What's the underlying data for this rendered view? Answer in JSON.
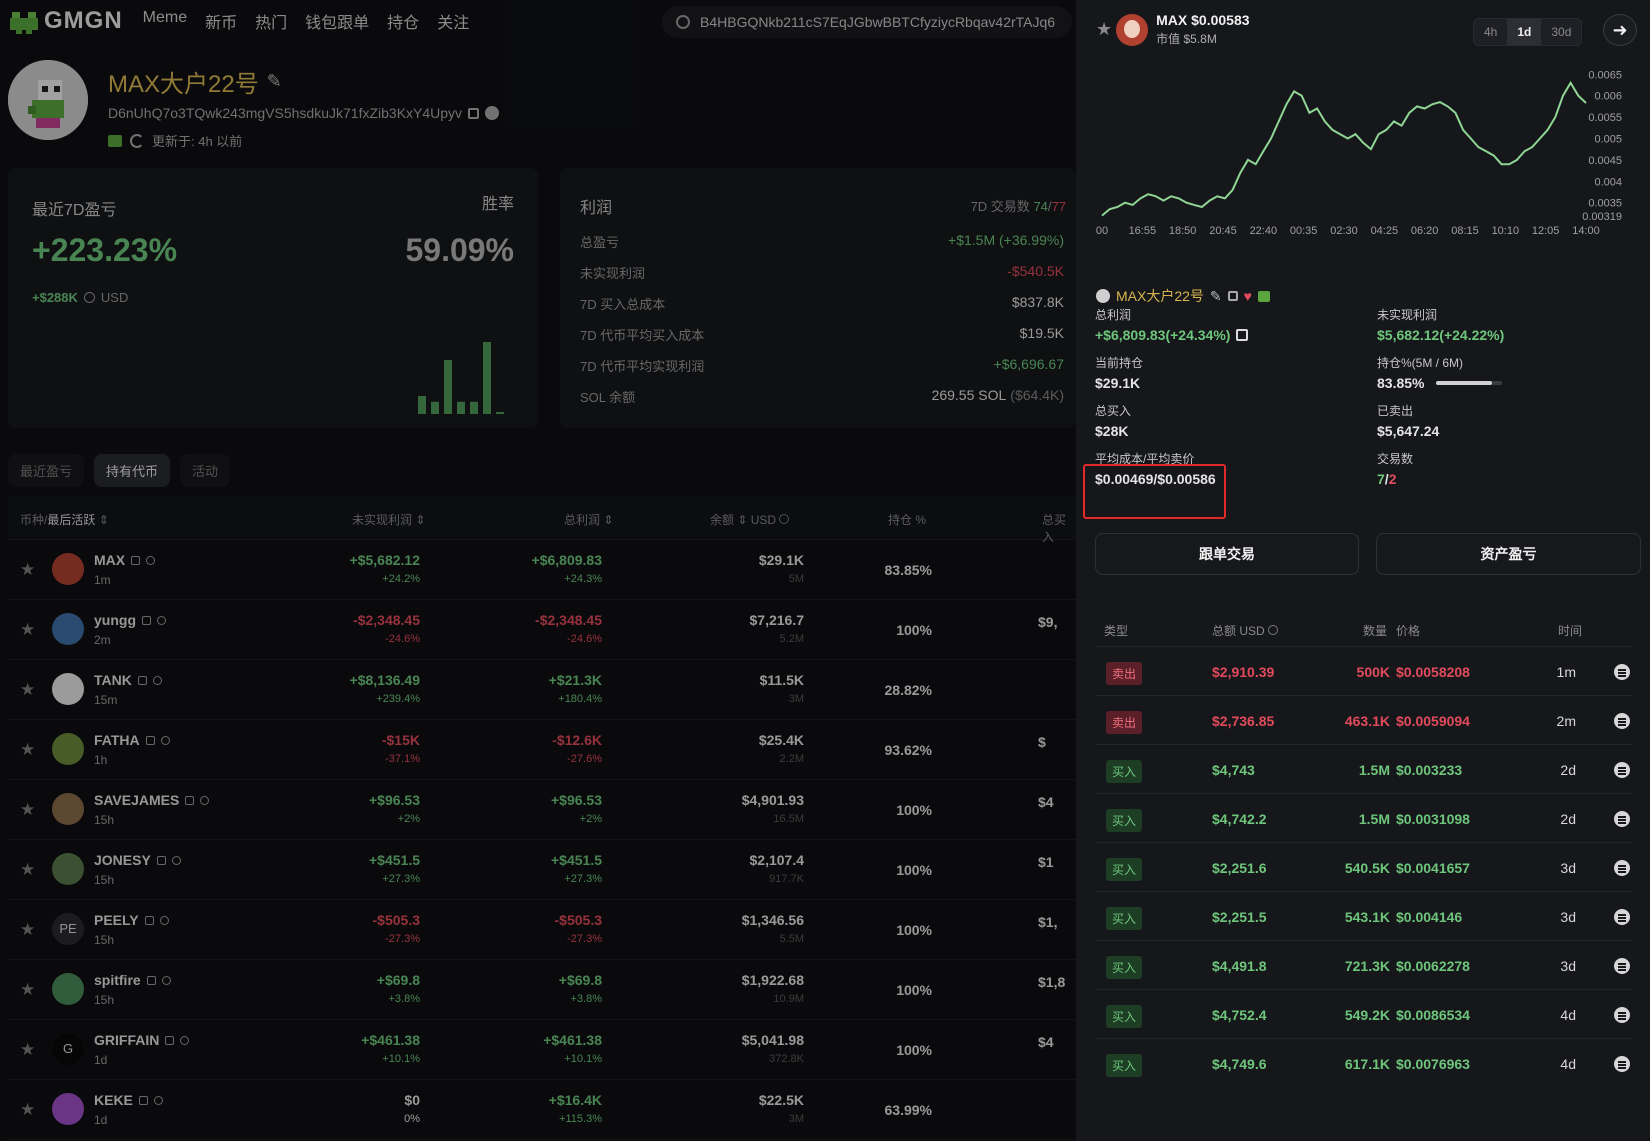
{
  "nav": {
    "logo_text": "GMGN",
    "links": [
      "Meme",
      "新币",
      "热门",
      "钱包跟单",
      "持仓",
      "关注"
    ],
    "search_text": "B4HBGQNkb211cS7EqJGbwBBTCfyziycRbqav42rTAJq6"
  },
  "profile": {
    "name": "MAX大户22号",
    "address": "D6nUhQ7o3TQwk243mgVS5hsdkuJk71fxZib3KxY4Upyv",
    "updated": "更新于: 4h 以前"
  },
  "pnl_card": {
    "title": "最近7D盈亏",
    "winrate_label": "胜率",
    "pnl_pct": "+223.23%",
    "winrate": "59.09%",
    "pnl_usd": "+$288K",
    "currency": "USD",
    "bar_values": [
      0.25,
      0.17,
      0.75,
      0.17,
      0.17,
      1.0,
      0.02
    ]
  },
  "profit_card": {
    "title": "利润",
    "tx_label": "7D 交易数",
    "tx_win": "74",
    "tx_sep": "/",
    "tx_loss": "77",
    "rows": [
      {
        "label": "总盈亏",
        "value": "+$1.5M (+36.99%)",
        "cls": "g"
      },
      {
        "label": "未实现利润",
        "value": "-$540.5K",
        "cls": "r"
      },
      {
        "label": "7D 买入总成本",
        "value": "$837.8K",
        "cls": "w"
      },
      {
        "label": "7D 代币平均买入成本",
        "value": "$19.5K",
        "cls": "w"
      },
      {
        "label": "7D 代币平均实现利润",
        "value": "+$6,696.67",
        "cls": "g"
      },
      {
        "label": "SOL 余额",
        "value": "269.55 SOL",
        "extra": "($64.4K)",
        "cls": "w"
      }
    ]
  },
  "tabs": [
    "最近盈亏",
    "持有代币",
    "活动"
  ],
  "table": {
    "headers": {
      "token": "币种/",
      "sort": "最后活跃",
      "unreal": "未实现利润",
      "total": "总利润",
      "balance": "余额",
      "usd": "USD",
      "hold": "持仓 %",
      "cost": "总买入"
    },
    "rows": [
      {
        "name": "MAX",
        "time": "1m",
        "u": "+$5,682.12",
        "up": "+24.2%",
        "uc": "g",
        "t": "+$6,809.83",
        "tp": "+24.3%",
        "tc": "g",
        "b": "$29.1K",
        "bq": "5M",
        "h": "83.85%",
        "c": "",
        "av": "#b04030"
      },
      {
        "name": "yungg",
        "time": "2m",
        "u": "-$2,348.45",
        "up": "-24.6%",
        "uc": "r",
        "t": "-$2,348.45",
        "tp": "-24.6%",
        "tc": "r",
        "b": "$7,216.7",
        "bq": "5.2M",
        "h": "100%",
        "c": "$9,",
        "av": "#3f6fa8"
      },
      {
        "name": "TANK",
        "time": "15m",
        "u": "+$8,136.49",
        "up": "+239.4%",
        "uc": "g",
        "t": "+$21.3K",
        "tp": "+180.4%",
        "tc": "g",
        "b": "$11.5K",
        "bq": "3M",
        "h": "28.82%",
        "c": "",
        "av": "#e8e8e8"
      },
      {
        "name": "FATHA",
        "time": "1h",
        "u": "-$15K",
        "up": "-37.1%",
        "uc": "r",
        "t": "-$12.6K",
        "tp": "-27.6%",
        "tc": "r",
        "b": "$25.4K",
        "bq": "2.2M",
        "h": "93.62%",
        "c": "$",
        "av": "#6a8a3a"
      },
      {
        "name": "SAVEJAMES",
        "time": "15h",
        "u": "+$96.53",
        "up": "+2%",
        "uc": "g",
        "t": "+$96.53",
        "tp": "+2%",
        "tc": "g",
        "b": "$4,901.93",
        "bq": "16.5M",
        "h": "100%",
        "c": "$4",
        "av": "#8a6a4a"
      },
      {
        "name": "JONESY",
        "time": "15h",
        "u": "+$451.5",
        "up": "+27.3%",
        "uc": "g",
        "t": "+$451.5",
        "tp": "+27.3%",
        "tc": "g",
        "b": "$2,107.4",
        "bq": "917.7K",
        "h": "100%",
        "c": "$1",
        "av": "#5a7a4a"
      },
      {
        "name": "PEELY",
        "time": "15h",
        "u": "-$505.3",
        "up": "-27.3%",
        "uc": "r",
        "t": "-$505.3",
        "tp": "-27.3%",
        "tc": "r",
        "b": "$1,346.56",
        "bq": "5.5M",
        "h": "100%",
        "c": "$1,",
        "av": "#2a2b30",
        "avtext": "PE"
      },
      {
        "name": "spitfire",
        "time": "15h",
        "u": "+$69.8",
        "up": "+3.8%",
        "uc": "g",
        "t": "+$69.8",
        "tp": "+3.8%",
        "tc": "g",
        "b": "$1,922.68",
        "bq": "10.9M",
        "h": "100%",
        "c": "$1,8",
        "av": "#4a8a5a"
      },
      {
        "name": "GRIFFAIN",
        "time": "1d",
        "u": "+$461.38",
        "up": "+10.1%",
        "uc": "g",
        "t": "+$461.38",
        "tp": "+10.1%",
        "tc": "g",
        "b": "$5,041.98",
        "bq": "372.8K",
        "h": "100%",
        "c": "$4",
        "av": "#0a0a0a",
        "avtext": "G"
      },
      {
        "name": "KEKE",
        "time": "1d",
        "u": "$0",
        "up": "0%",
        "uc": "w",
        "t": "+$16.4K",
        "tp": "+115.3%",
        "tc": "g",
        "b": "$22.5K",
        "bq": "3M",
        "h": "63.99%",
        "c": "",
        "av": "#a050c8"
      }
    ]
  },
  "right": {
    "token": "MAX $0.00583",
    "mcap": "市值 $5.8M",
    "timeframes": [
      "4h",
      "1d",
      "30d"
    ],
    "active_tf": "1d",
    "chart_data": {
      "type": "line",
      "x_labels": [
        "00",
        "16:55",
        "18:50",
        "20:45",
        "22:40",
        "00:35",
        "02:30",
        "04:25",
        "06:20",
        "08:15",
        "10:10",
        "12:05",
        "14:00"
      ],
      "y_labels": [
        "0.0065",
        "0.006",
        "0.0055",
        "0.005",
        "0.0045",
        "0.004",
        "0.0035",
        "0.00319"
      ],
      "ylim": [
        0.00319,
        0.0066
      ],
      "color": "#8fd694",
      "values": [
        0.0032,
        0.00335,
        0.0034,
        0.0035,
        0.00345,
        0.0036,
        0.0037,
        0.00365,
        0.00355,
        0.00365,
        0.0036,
        0.0035,
        0.00345,
        0.0034,
        0.00355,
        0.00365,
        0.0036,
        0.0038,
        0.0042,
        0.0045,
        0.0044,
        0.0047,
        0.005,
        0.0054,
        0.0058,
        0.0061,
        0.006,
        0.0056,
        0.0057,
        0.0054,
        0.0052,
        0.0051,
        0.005,
        0.0051,
        0.0049,
        0.00475,
        0.0051,
        0.0052,
        0.0054,
        0.0053,
        0.0056,
        0.00575,
        0.0057,
        0.0058,
        0.00585,
        0.00575,
        0.0056,
        0.0052,
        0.005,
        0.0048,
        0.0047,
        0.0046,
        0.0044,
        0.0044,
        0.0045,
        0.0047,
        0.0048,
        0.005,
        0.0052,
        0.0055,
        0.006,
        0.0063,
        0.006,
        0.00583
      ]
    },
    "holder": {
      "name": "MAX大户22号"
    },
    "stats": [
      {
        "label": "总利润",
        "value": "+$6,809.83(+24.34%)",
        "cls": "g"
      },
      {
        "label": "未实现利润",
        "value": "$5,682.12(+24.22%)",
        "cls": "g"
      },
      {
        "label": "当前持仓",
        "value": "$29.1K",
        "cls": "w"
      },
      {
        "label": "持仓%(5M / 6M)",
        "value": "83.85%",
        "cls": "w",
        "bar": 0.8385
      },
      {
        "label": "总买入",
        "value": "$28K",
        "cls": "w"
      },
      {
        "label": "已卖出",
        "value": "$5,647.24",
        "cls": "w"
      },
      {
        "label": "平均成本/平均卖价",
        "value": "$0.00469/$0.00586",
        "cls": "w"
      },
      {
        "label": "交易数",
        "value_win": "7",
        "value_sep": "/",
        "value_loss": "2"
      }
    ],
    "buttons": [
      "跟单交易",
      "资产盈亏"
    ],
    "trades_header": {
      "type": "类型",
      "total": "总额",
      "usd": "USD",
      "qty": "数量",
      "price": "价格",
      "time": "时间"
    },
    "trades": [
      {
        "type": "卖出",
        "kind": "sell",
        "total": "$2,910.39",
        "qty": "500K",
        "price": "$0.0058208",
        "time": "1m"
      },
      {
        "type": "卖出",
        "kind": "sell",
        "total": "$2,736.85",
        "qty": "463.1K",
        "price": "$0.0059094",
        "time": "2m"
      },
      {
        "type": "买入",
        "kind": "buy",
        "total": "$4,743",
        "qty": "1.5M",
        "price": "$0.003233",
        "time": "2d"
      },
      {
        "type": "买入",
        "kind": "buy",
        "total": "$4,742.2",
        "qty": "1.5M",
        "price": "$0.0031098",
        "time": "2d"
      },
      {
        "type": "买入",
        "kind": "buy",
        "total": "$2,251.6",
        "qty": "540.5K",
        "price": "$0.0041657",
        "time": "3d"
      },
      {
        "type": "买入",
        "kind": "buy",
        "total": "$2,251.5",
        "qty": "543.1K",
        "price": "$0.004146",
        "time": "3d"
      },
      {
        "type": "买入",
        "kind": "buy",
        "total": "$4,491.8",
        "qty": "721.3K",
        "price": "$0.0062278",
        "time": "3d"
      },
      {
        "type": "买入",
        "kind": "buy",
        "total": "$4,752.4",
        "qty": "549.2K",
        "price": "$0.0086534",
        "time": "4d"
      },
      {
        "type": "买入",
        "kind": "buy",
        "total": "$4,749.6",
        "qty": "617.1K",
        "price": "$0.0076963",
        "time": "4d"
      }
    ]
  },
  "colors": {
    "green": "#6ec67c",
    "red": "#e14b5b",
    "gold": "#d7b650",
    "highlight": "#e22a2a"
  }
}
